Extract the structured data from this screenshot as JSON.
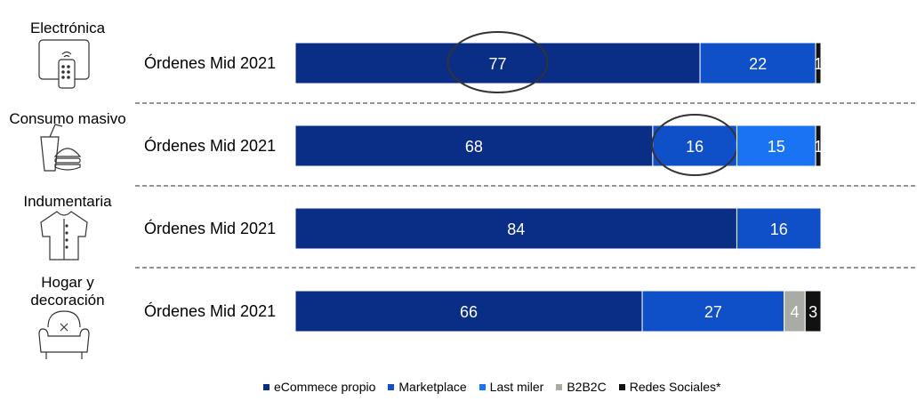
{
  "chart_data": {
    "type": "bar",
    "orientation": "horizontal-stacked-100",
    "row_label": "Órdenes Mid 2021",
    "rows": [
      {
        "category": "Electrónica",
        "icon": "remote-control-icon",
        "segments": [
          77,
          22,
          0,
          0,
          1
        ],
        "labels": [
          "77",
          "22",
          "",
          "",
          "1"
        ],
        "highlight": 0
      },
      {
        "category": "Consumo masivo",
        "icon": "fastfood-icon",
        "segments": [
          68,
          16,
          15,
          0,
          1
        ],
        "labels": [
          "68",
          "16",
          "15",
          "",
          "1"
        ],
        "highlight": 1
      },
      {
        "category": "Indumentaria",
        "icon": "shirt-icon",
        "segments": [
          84,
          16,
          0,
          0,
          0
        ],
        "labels": [
          "84",
          "16",
          "",
          "",
          ""
        ],
        "highlight": null
      },
      {
        "category": "Hogar y decoración",
        "icon": "armchair-icon",
        "segments": [
          66,
          27,
          0,
          4,
          3
        ],
        "labels": [
          "66",
          "27",
          "",
          "4",
          "3"
        ],
        "highlight": null
      }
    ],
    "series": [
      {
        "name": "eCommece propio",
        "color": "#0a2e86"
      },
      {
        "name": "Marketplace",
        "color": "#0f4fc8"
      },
      {
        "name": "Last miler",
        "color": "#1a73f2"
      },
      {
        "name": "B2B2C",
        "color": "#a8aca4"
      },
      {
        "name": "Redes Sociales*",
        "color": "#111111"
      }
    ],
    "xlim": [
      0,
      100
    ],
    "legend_position": "bottom"
  }
}
